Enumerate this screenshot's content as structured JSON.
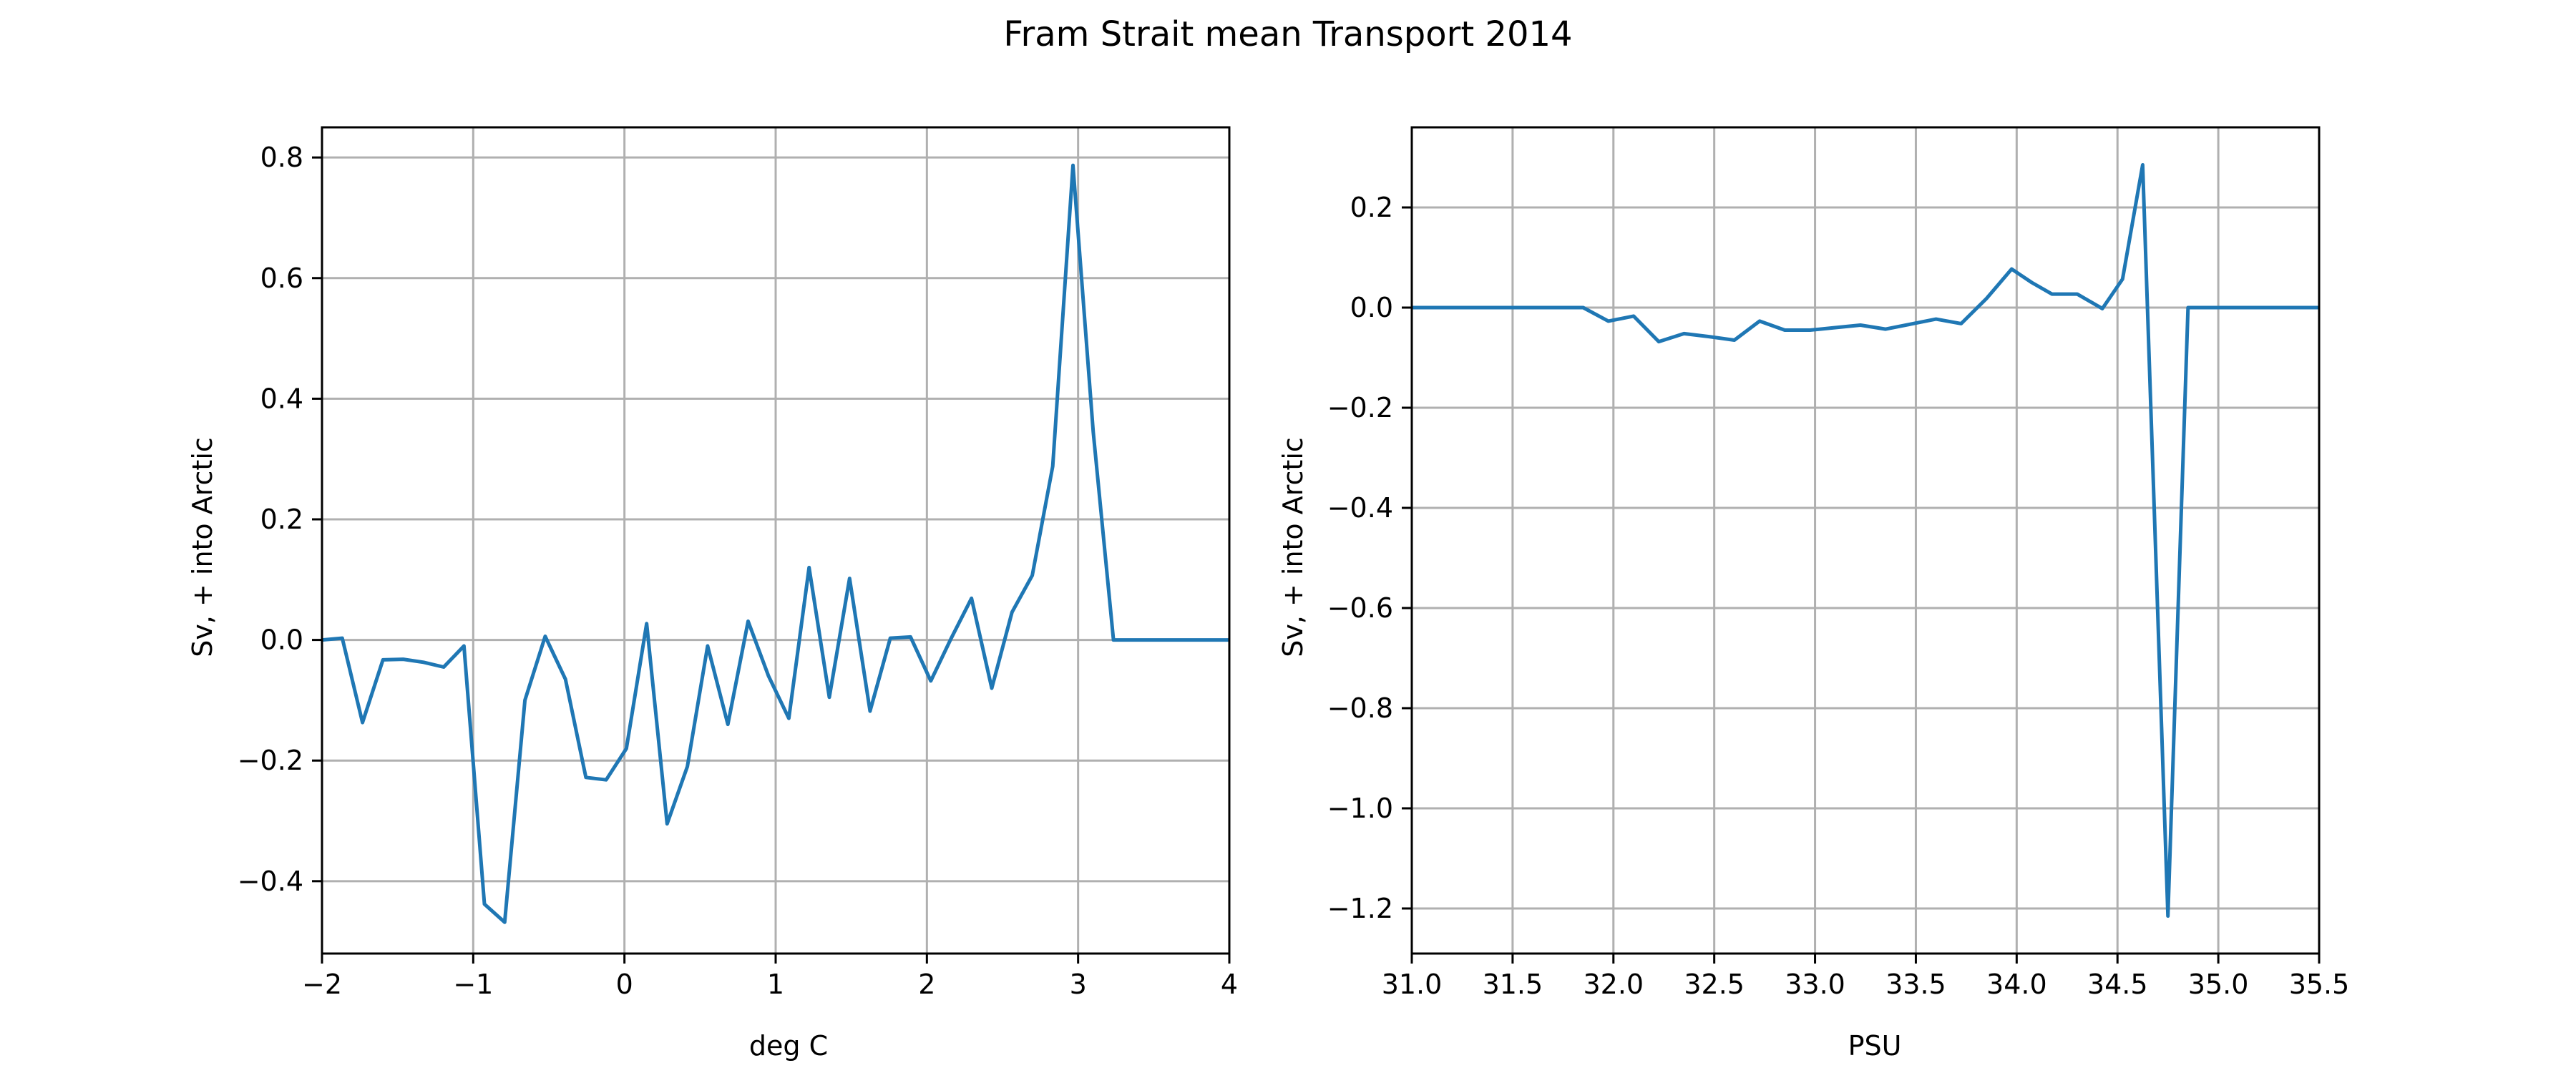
{
  "figure": {
    "title": "Fram Strait mean Transport 2014"
  },
  "colors": {
    "series": "#1f77b4",
    "grid": "#b0b0b0",
    "frame": "#000000",
    "background": "#ffffff"
  },
  "chart_data": [
    {
      "type": "line",
      "title": "",
      "xlabel": "deg C",
      "ylabel": "Sv, + into Arctic",
      "xlim": [
        -2,
        4
      ],
      "ylim": [
        -0.52,
        0.85
      ],
      "xticks": [
        -2,
        -1,
        0,
        1,
        2,
        3,
        4
      ],
      "xtick_labels": [
        "−2",
        "−1",
        "0",
        "1",
        "2",
        "3",
        "4"
      ],
      "yticks": [
        -0.4,
        -0.2,
        0.0,
        0.2,
        0.4,
        0.6,
        0.8
      ],
      "ytick_labels": [
        "−0.4",
        "−0.2",
        "0.0",
        "0.2",
        "0.4",
        "0.6",
        "0.8"
      ],
      "grid": true,
      "series": [
        {
          "x": [
            -2.0,
            -1.866,
            -1.732,
            -1.597,
            -1.463,
            -1.329,
            -1.195,
            -1.061,
            -0.926,
            -0.792,
            -0.658,
            -0.524,
            -0.39,
            -0.255,
            -0.121,
            0.013,
            0.147,
            0.282,
            0.416,
            0.55,
            0.684,
            0.818,
            0.953,
            1.087,
            1.221,
            1.355,
            1.489,
            1.624,
            1.758,
            1.892,
            2.026,
            2.161,
            2.295,
            2.429,
            2.563,
            2.697,
            2.832,
            2.966,
            3.1,
            3.234,
            3.368,
            3.503,
            3.637,
            3.771,
            3.905,
            4.0
          ],
          "y": [
            0.0,
            0.003,
            -0.137,
            -0.033,
            -0.032,
            -0.037,
            -0.045,
            -0.01,
            -0.438,
            -0.468,
            -0.1,
            0.006,
            -0.065,
            -0.228,
            -0.232,
            -0.18,
            0.027,
            -0.305,
            -0.21,
            -0.01,
            -0.14,
            0.031,
            -0.06,
            -0.13,
            0.12,
            -0.095,
            0.102,
            -0.118,
            0.003,
            0.005,
            -0.068,
            0.003,
            0.069,
            -0.08,
            0.046,
            0.107,
            0.288,
            0.787,
            0.345,
            0.0,
            0.0,
            0.0,
            0.0,
            0.0,
            0.0,
            0.0
          ]
        }
      ]
    },
    {
      "type": "line",
      "title": "",
      "xlabel": "PSU",
      "ylabel": "Sv, + into Arctic",
      "xlim": [
        31.0,
        35.5
      ],
      "ylim": [
        -1.29,
        0.36
      ],
      "xticks": [
        31.0,
        31.5,
        32.0,
        32.5,
        33.0,
        33.5,
        34.0,
        34.5,
        35.0,
        35.5
      ],
      "xtick_labels": [
        "31.0",
        "31.5",
        "32.0",
        "32.5",
        "33.0",
        "33.5",
        "34.0",
        "34.5",
        "35.0",
        "35.5"
      ],
      "yticks": [
        -1.2,
        -1.0,
        -0.8,
        -0.6,
        -0.4,
        -0.2,
        0.0,
        0.2
      ],
      "ytick_labels": [
        "−1.2",
        "−1.0",
        "−0.8",
        "−0.6",
        "−0.4",
        "−0.2",
        "0.0",
        "0.2"
      ],
      "grid": true,
      "series": [
        {
          "x": [
            31.0,
            31.1,
            31.2,
            31.3,
            31.4,
            31.5,
            31.6,
            31.7,
            31.85,
            31.975,
            32.1,
            32.225,
            32.35,
            32.475,
            32.6,
            32.725,
            32.85,
            32.975,
            33.1,
            33.225,
            33.35,
            33.475,
            33.6,
            33.725,
            33.85,
            33.975,
            34.075,
            34.175,
            34.3,
            34.425,
            34.525,
            34.625,
            34.75,
            34.85,
            34.975,
            35.1,
            35.2,
            35.3,
            35.5
          ],
          "y": [
            0.0,
            0.0,
            0.0,
            0.0,
            0.0,
            0.0,
            0.0,
            0.0,
            0.0,
            -0.027,
            -0.017,
            -0.068,
            -0.052,
            -0.058,
            -0.065,
            -0.027,
            -0.045,
            -0.045,
            -0.04,
            -0.035,
            -0.043,
            -0.033,
            -0.023,
            -0.032,
            0.018,
            0.077,
            0.05,
            0.027,
            0.027,
            -0.002,
            0.057,
            0.285,
            -1.215,
            0.0,
            0.0,
            0.0,
            0.0,
            0.0,
            0.0
          ]
        }
      ]
    }
  ]
}
